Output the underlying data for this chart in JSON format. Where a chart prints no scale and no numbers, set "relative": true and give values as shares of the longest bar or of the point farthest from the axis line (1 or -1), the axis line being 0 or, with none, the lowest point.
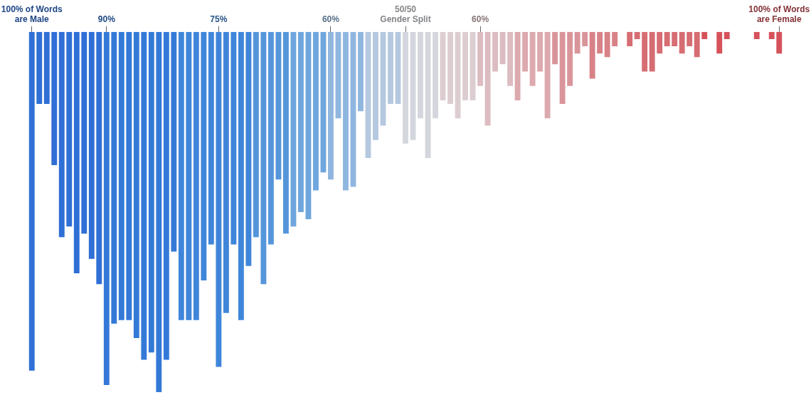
{
  "chart_data": {
    "type": "bar",
    "relative": true,
    "categories": [
      "100% of Words are Male",
      null,
      null,
      null,
      null,
      null,
      null,
      null,
      null,
      null,
      "90%",
      null,
      null,
      null,
      null,
      null,
      null,
      null,
      null,
      null,
      null,
      null,
      null,
      null,
      null,
      "75%",
      null,
      null,
      null,
      null,
      null,
      null,
      null,
      null,
      null,
      null,
      null,
      null,
      null,
      null,
      "60%",
      null,
      null,
      null,
      null,
      null,
      null,
      null,
      null,
      null,
      "50/50 Gender Split",
      null,
      null,
      null,
      null,
      null,
      null,
      null,
      null,
      null,
      "60%",
      null,
      null,
      null,
      null,
      null,
      null,
      null,
      null,
      null,
      null,
      null,
      null,
      null,
      null,
      null,
      null,
      null,
      null,
      null,
      null,
      null,
      null,
      null,
      null,
      null,
      null,
      null,
      null,
      null,
      null,
      null,
      null,
      null,
      null,
      null,
      null,
      null,
      null,
      null,
      "100% of Words are Female"
    ],
    "values": [
      -0.94,
      -0.2,
      -0.2,
      -0.37,
      -0.57,
      -0.54,
      -0.67,
      -0.56,
      -0.63,
      -0.7,
      -0.98,
      -0.81,
      -0.8,
      -0.8,
      -0.85,
      -0.91,
      -0.89,
      -1,
      -0.91,
      -0.61,
      -0.8,
      -0.8,
      -0.8,
      -0.69,
      -0.59,
      -0.93,
      -0.78,
      -0.59,
      -0.8,
      -0.65,
      -0.57,
      -0.7,
      -0.59,
      -0.41,
      -0.56,
      -0.54,
      -0.5,
      -0.52,
      -0.44,
      -0.39,
      -0.41,
      -0.24,
      -0.44,
      -0.43,
      -0.22,
      -0.35,
      -0.3,
      -0.26,
      -0.2,
      -0.2,
      -0.31,
      -0.3,
      -0.24,
      -0.35,
      -0.24,
      -0.19,
      -0.2,
      -0.24,
      -0.19,
      -0.19,
      -0.15,
      -0.26,
      -0.11,
      -0.09,
      -0.15,
      -0.19,
      -0.11,
      -0.15,
      -0.11,
      -0.24,
      -0.09,
      -0.2,
      -0.15,
      -0.06,
      -0.04,
      -0.13,
      -0.06,
      -0.07,
      -0.04,
      0,
      -0.04,
      -0.02,
      -0.11,
      -0.11,
      -0.06,
      -0.04,
      -0.04,
      -0.06,
      -0.04,
      -0.07,
      -0.02,
      0,
      -0.06,
      -0.02,
      0,
      0,
      0,
      -0.02,
      0,
      -0.02,
      -0.06
    ],
    "colors": [
      "#2f6fd6",
      "#2f6fd6",
      "#2f6fd6",
      "#2f6fd6",
      "#2f6fd6",
      "#2f6fd6",
      "#2f6fd6",
      "#2f6fd6",
      "#2f6fd6",
      "#2f6fd6",
      "#3479d8",
      "#3479d8",
      "#3479d8",
      "#3479d8",
      "#3479d8",
      "#3479d8",
      "#3479d8",
      "#3479d8",
      "#3479d8",
      "#3479d8",
      "#3f86da",
      "#3f86da",
      "#3f86da",
      "#3f86da",
      "#3f86da",
      "#3f86da",
      "#3f86da",
      "#3f86da",
      "#3f86da",
      "#3f86da",
      "#5596db",
      "#5596db",
      "#5596db",
      "#5596db",
      "#5596db",
      "#6ea6dd",
      "#6ea6dd",
      "#6ea6dd",
      "#6ea6dd",
      "#6ea6dd",
      "#8fb6df",
      "#8fb6df",
      "#8fb6df",
      "#8fb6df",
      "#8fb6df",
      "#b5c8e0",
      "#b5c8e0",
      "#b5c8e0",
      "#b5c8e0",
      "#b5c8e0",
      "#d3d6dc",
      "#d3d6dc",
      "#d3d6dc",
      "#d3d6dc",
      "#d3d6dc",
      "#dccdd1",
      "#dccdd1",
      "#dccdd1",
      "#dccdd1",
      "#dccdd1",
      "#dcbcc0",
      "#dcbcc0",
      "#dcbcc0",
      "#dcbcc0",
      "#dcbcc0",
      "#dba9ae",
      "#dba9ae",
      "#dba9ae",
      "#dba9ae",
      "#dba9ae",
      "#d9959a",
      "#d9959a",
      "#d9959a",
      "#d9959a",
      "#d9959a",
      "#d88287",
      "#d88287",
      "#d88287",
      "#d88287",
      "#d88287",
      "#d66d72",
      "#d66d72",
      "#d66d72",
      "#d66d72",
      "#d66d72",
      "#d66d72",
      "#d66d72",
      "#d66d72",
      "#d66d72",
      "#d66d72",
      "#d6525a",
      "#d6525a",
      "#d6525a",
      "#d6525a",
      "#d6525a",
      "#d6525a",
      "#d6525a",
      "#d6525a",
      "#d6525a",
      "#d6525a",
      "#d6525a"
    ],
    "legend": false
  }
}
